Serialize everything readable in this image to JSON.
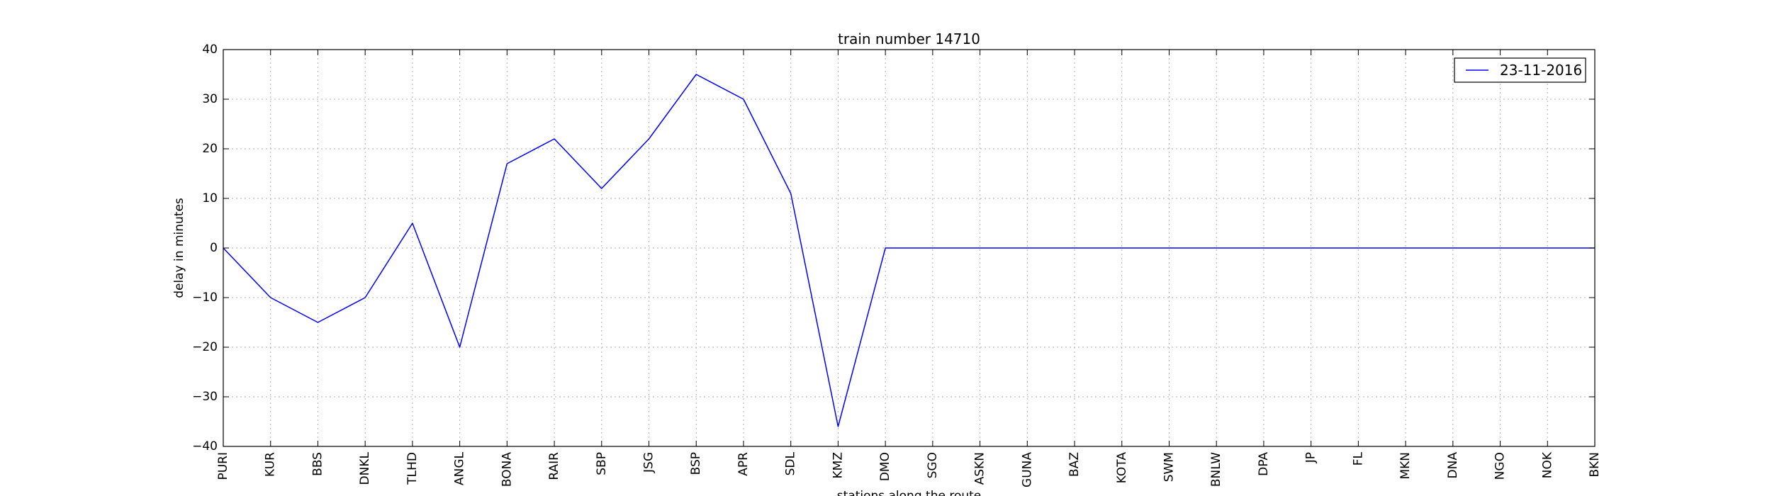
{
  "chart_data": {
    "type": "line",
    "title": "train number 14710",
    "xlabel": "stations along the route",
    "ylabel": "delay in minutes",
    "categories": [
      "PURI",
      "KUR",
      "BBS",
      "DNKL",
      "TLHD",
      "ANGL",
      "BONA",
      "RAIR",
      "SBP",
      "JSG",
      "BSP",
      "APR",
      "SDL",
      "KMZ",
      "DMO",
      "SGO",
      "ASKN",
      "GUNA",
      "BAZ",
      "KOTA",
      "SWM",
      "BNLW",
      "DPA",
      "JP",
      "FL",
      "MKN",
      "DNA",
      "NGO",
      "NOK",
      "BKN"
    ],
    "series": [
      {
        "name": "23-11-2016",
        "color": "#0000ff",
        "values": [
          0,
          -10,
          -15,
          -10,
          5,
          -20,
          17,
          22,
          12,
          22,
          35,
          30,
          11,
          -36,
          0,
          0,
          0,
          0,
          0,
          0,
          0,
          0,
          0,
          0,
          0,
          0,
          0,
          0,
          0,
          0
        ]
      }
    ],
    "ylim": [
      -40,
      40
    ],
    "yticks": [
      -40,
      -30,
      -20,
      -10,
      0,
      10,
      20,
      30,
      40
    ],
    "ytick_labels": [
      "−40",
      "−30",
      "−20",
      "−10",
      "0",
      "10",
      "20",
      "30",
      "40"
    ],
    "grid": true,
    "legend_position": "top-right"
  }
}
